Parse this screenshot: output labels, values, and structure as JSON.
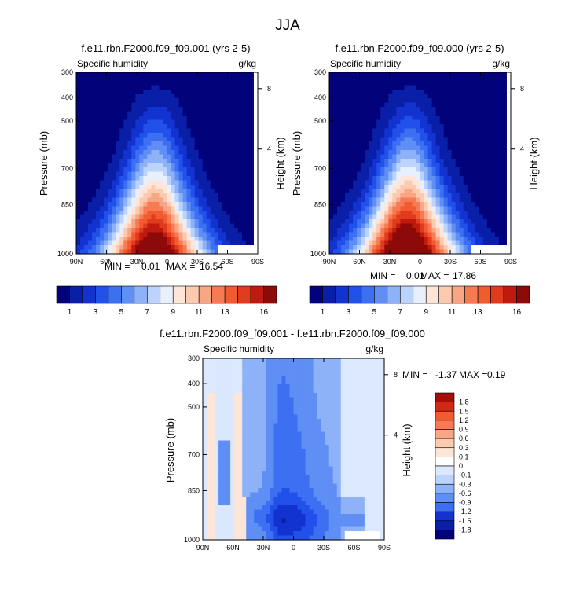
{
  "figure": {
    "title": "JJA"
  },
  "palette": {
    "humidity_colors": [
      "#02037a",
      "#0a1fa8",
      "#1233cf",
      "#2150ea",
      "#3d6ff2",
      "#5f8ef5",
      "#8eb2f8",
      "#bcd3fb",
      "#e8f0fd",
      "#fde6d8",
      "#fccaae",
      "#f9a684",
      "#f77a55",
      "#f25a30",
      "#e23a1e",
      "#c0190d",
      "#8c0a08"
    ],
    "diff_colors": [
      "#02037a",
      "#0a1fa8",
      "#1233cf",
      "#2150ea",
      "#3d6ff2",
      "#5f8ef5",
      "#8eb2f8",
      "#bcd3fb",
      "#dbe8fd",
      "#fde6d8",
      "#fccaae",
      "#f9a684",
      "#f77a55",
      "#f25a30",
      "#d02a15",
      "#8c0a08"
    ]
  },
  "chart_data": [
    {
      "type": "contour",
      "title": "f.e11.rbn.F2000.f09_f09.001 (yrs 2-5)",
      "left_label": "Specific humidity",
      "right_label": "g/kg",
      "ylabel": "Pressure (mb)",
      "right_axis_label": "Height (km)",
      "x_ticks": [
        "90N",
        "60N",
        "30N",
        "0",
        "30S",
        "60S",
        "90S"
      ],
      "y_ticks": [
        "300",
        "400",
        "500",
        "700",
        "850",
        "1000"
      ],
      "height_ticks": [
        "8",
        "4"
      ],
      "stats": {
        "min_label": "MIN =",
        "min": "0.01",
        "max_label": "MAX =",
        "max": "16.54"
      },
      "colorbar_labels": [
        "1",
        "3",
        "5",
        "7",
        "9",
        "11",
        "13",
        "16"
      ],
      "peak": 16.54
    },
    {
      "type": "contour",
      "title": "f.e11.rbn.F2000.f09_f09.000 (yrs 2-5)",
      "left_label": "Specific humidity",
      "right_label": "g/kg",
      "ylabel": "Pressure (mb)",
      "right_axis_label": "Height (km)",
      "x_ticks": [
        "90N",
        "60N",
        "30N",
        "0",
        "30S",
        "60S",
        "90S"
      ],
      "y_ticks": [
        "300",
        "400",
        "500",
        "700",
        "850",
        "1000"
      ],
      "height_ticks": [
        "8",
        "4"
      ],
      "stats": {
        "min_label": "MIN =",
        "min": "0.01",
        "max_label": "MAX =",
        "max": "17.86"
      },
      "colorbar_labels": [
        "1",
        "3",
        "5",
        "7",
        "9",
        "11",
        "13",
        "16"
      ],
      "peak": 17.86
    },
    {
      "type": "contour",
      "title": "f.e11.rbn.F2000.f09_f09.001 - f.e11.rbn.F2000.f09_f09.000",
      "left_label": "Specific humidity",
      "right_label": "g/kg",
      "ylabel": "Pressure (mb)",
      "right_axis_label": "Height (km)",
      "x_ticks": [
        "90N",
        "60N",
        "30N",
        "0",
        "30S",
        "60S",
        "90S"
      ],
      "y_ticks": [
        "300",
        "400",
        "500",
        "700",
        "850",
        "1000"
      ],
      "height_ticks": [
        "8",
        "4"
      ],
      "stats": {
        "min_label": "MIN =",
        "min": "-1.37",
        "max_label": "MAX =",
        "max": "0.19"
      },
      "colorbar_labels": [
        "1.8",
        "1.5",
        "1.2",
        "0.9",
        "0.6",
        "0.3",
        "0.1",
        "0",
        "-0.1",
        "-0.3",
        "-0.6",
        "-0.9",
        "-1.2",
        "-1.5",
        "-1.8"
      ]
    }
  ]
}
